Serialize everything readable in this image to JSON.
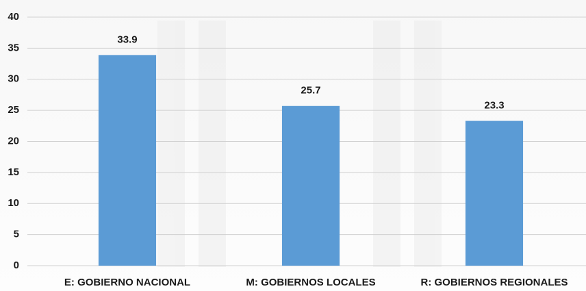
{
  "chart_data": {
    "type": "bar",
    "categories": [
      "E: GOBIERNO NACIONAL",
      "M: GOBIERNOS LOCALES",
      "R: GOBIERNOS REGIONALES"
    ],
    "values": [
      33.9,
      25.7,
      23.3
    ],
    "color": "#5b9bd5",
    "ylim": [
      0,
      40
    ],
    "yticks": [
      0,
      5,
      10,
      15,
      20,
      25,
      30,
      35,
      40
    ],
    "grid": true
  }
}
